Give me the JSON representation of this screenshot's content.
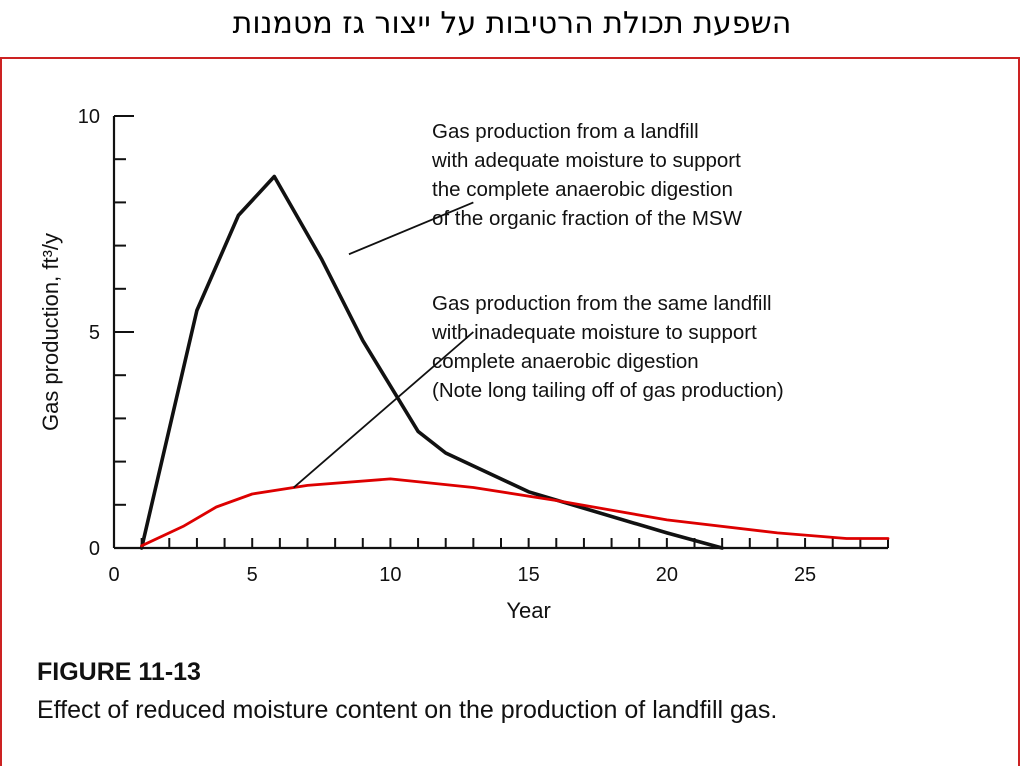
{
  "slide": {
    "title": "השפעת תכולת הרטיבות על ייצור גז מטמנות"
  },
  "figure": {
    "number": "FIGURE 11-13",
    "caption": "Effect of reduced moisture content on the production of landfill gas."
  },
  "colors": {
    "frame": "#cc2222",
    "adequate_line": "#111111",
    "inadequate_line": "#dd0000"
  },
  "chart_data": {
    "type": "line",
    "xlabel": "Year",
    "ylabel": "Gas production, ft³/y",
    "xlim": [
      0,
      28
    ],
    "ylim": [
      0,
      10
    ],
    "x_ticks": [
      0,
      5,
      10,
      15,
      20,
      25
    ],
    "y_ticks": [
      0,
      5,
      10
    ],
    "grid": false,
    "series": [
      {
        "x": [
          1,
          3,
          4.5,
          5.8,
          7.5,
          9,
          11,
          12,
          15,
          20,
          22
        ],
        "y": [
          0,
          5.5,
          7.7,
          8.6,
          6.7,
          4.8,
          2.7,
          2.2,
          1.3,
          0.35,
          0
        ],
        "color": "#111111"
      },
      {
        "x": [
          1,
          2.5,
          3.7,
          5,
          7,
          10,
          13,
          16,
          20,
          24,
          26.5,
          28
        ],
        "y": [
          0.05,
          0.5,
          0.95,
          1.25,
          1.45,
          1.6,
          1.4,
          1.1,
          0.65,
          0.35,
          0.22,
          0.22
        ],
        "color": "#dd0000"
      }
    ],
    "annotations": [
      {
        "lines": [
          "Gas production from a landfill",
          "with adequate moisture to support",
          "the complete anaerobic digestion",
          "of the organic fraction of the MSW"
        ],
        "pointer_from": [
          8.5,
          6.8
        ],
        "pointer_to": [
          13,
          8
        ]
      },
      {
        "lines": [
          "Gas production from the same landfill",
          "with inadequate moisture to support",
          "complete anaerobic digestion",
          "(Note long tailing off of gas production)"
        ],
        "pointer_from": [
          6.5,
          1.4
        ],
        "pointer_to": [
          13,
          5
        ]
      }
    ]
  }
}
